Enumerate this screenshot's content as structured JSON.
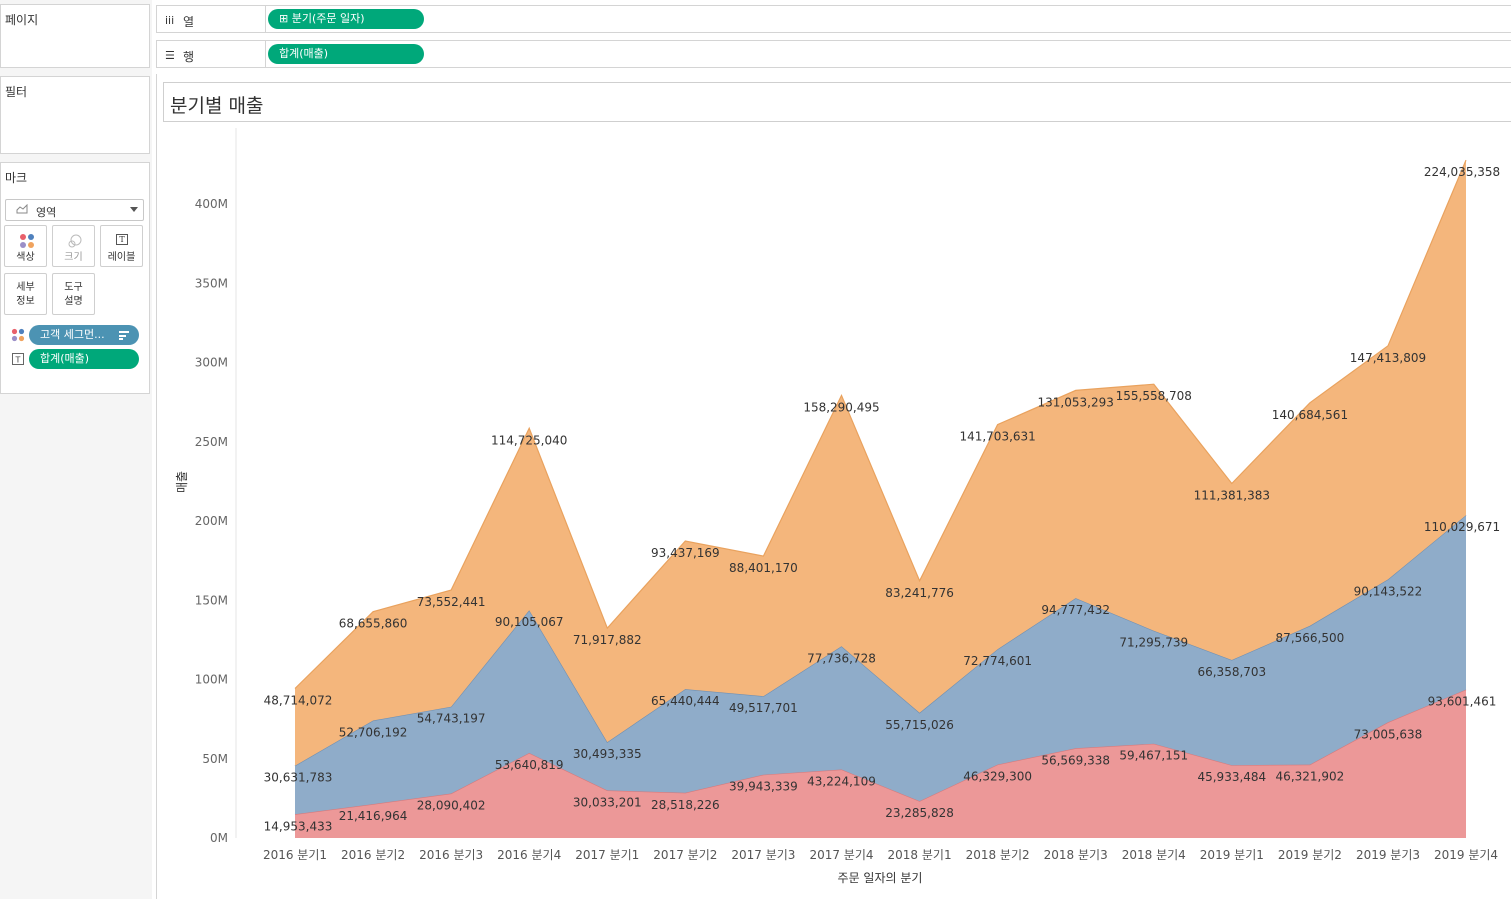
{
  "sidebar": {
    "pages_title": "페이지",
    "filters_title": "필터",
    "marks_title": "마크",
    "mark_type": "영역",
    "buttons": {
      "color": "색상",
      "size": "크기",
      "label": "레이블",
      "detail_line1": "세부",
      "detail_line2": "정보",
      "tooltip_line1": "도구",
      "tooltip_line2": "설명"
    },
    "mark_fields": {
      "color_field": "고객 세그먼...",
      "label_field": "합계(매출)"
    }
  },
  "shelves": {
    "columns_label": "열",
    "columns_pill": "⊞ 분기(주문 일자)",
    "rows_label": "행",
    "rows_pill": "합계(매출)"
  },
  "colors": {
    "consumer": "#f4b67c",
    "corporate": "#8facc9",
    "home_office": "#ec9898",
    "pill_green": "#00a87a",
    "pill_blue": "#4c93b3"
  },
  "chart_data": {
    "type": "area",
    "stacked": true,
    "title": "분기별 매출",
    "xlabel": "주문 일자의 분기",
    "ylabel": "매출",
    "ylim": [
      0,
      430000000
    ],
    "yticks": [
      0,
      50000000,
      100000000,
      150000000,
      200000000,
      250000000,
      300000000,
      350000000,
      400000000
    ],
    "ytick_labels": [
      "0M",
      "50M",
      "100M",
      "150M",
      "200M",
      "250M",
      "300M",
      "350M",
      "400M"
    ],
    "categories": [
      "2016 분기1",
      "2016 분기2",
      "2016 분기3",
      "2016 분기4",
      "2017 분기1",
      "2017 분기2",
      "2017 분기3",
      "2017 분기4",
      "2018 분기1",
      "2018 분기2",
      "2018 분기3",
      "2018 분기4",
      "2019 분기1",
      "2019 분기2",
      "2019 분기3",
      "2019 분기4"
    ],
    "series": [
      {
        "name": "bottom",
        "color_key": "home_office",
        "values": [
          14953433,
          21416964,
          28090402,
          53640819,
          30033201,
          28518226,
          39943339,
          43224109,
          23285828,
          46329300,
          56569338,
          59467151,
          45933484,
          46321902,
          73005638,
          93601461
        ],
        "labels": [
          "14,953,433",
          "21,416,964",
          "28,090,402",
          "53,640,819",
          "30,033,201",
          "28,518,226",
          "39,943,339",
          "43,224,109",
          "23,285,828",
          "46,329,300",
          "56,569,338",
          "59,467,151",
          "45,933,484",
          "46,321,902",
          "73,005,638",
          "93,601,461"
        ]
      },
      {
        "name": "middle",
        "color_key": "corporate",
        "values": [
          30631783,
          52706192,
          54743197,
          90105067,
          30493335,
          65440444,
          49517701,
          77736728,
          55715026,
          72774601,
          94777432,
          71295739,
          66358703,
          87566500,
          90143522,
          110029671
        ],
        "labels": [
          "30,631,783",
          "52,706,192",
          "54,743,197",
          "90,105,067",
          "30,493,335",
          "65,440,444",
          "49,517,701",
          "77,736,728",
          "55,715,026",
          "72,774,601",
          "94,777,432",
          "71,295,739",
          "66,358,703",
          "87,566,500",
          "90,143,522",
          "110,029,671"
        ]
      },
      {
        "name": "top",
        "color_key": "consumer",
        "values": [
          48714072,
          68655860,
          73552441,
          114725040,
          71917882,
          93437169,
          88401170,
          158290495,
          83241776,
          141703631,
          131053293,
          155558708,
          111381383,
          140684561,
          147413809,
          224035358
        ],
        "labels": [
          "48,714,072",
          "68,655,860",
          "73,552,441",
          "114,725,040",
          "71,917,882",
          "93,437,169",
          "88,401,170",
          "158,290,495",
          "83,241,776",
          "141,703,631",
          "131,053,293",
          "155,558,708",
          "111,381,383",
          "140,684,561",
          "147,413,809",
          "224,035,358"
        ]
      }
    ]
  }
}
